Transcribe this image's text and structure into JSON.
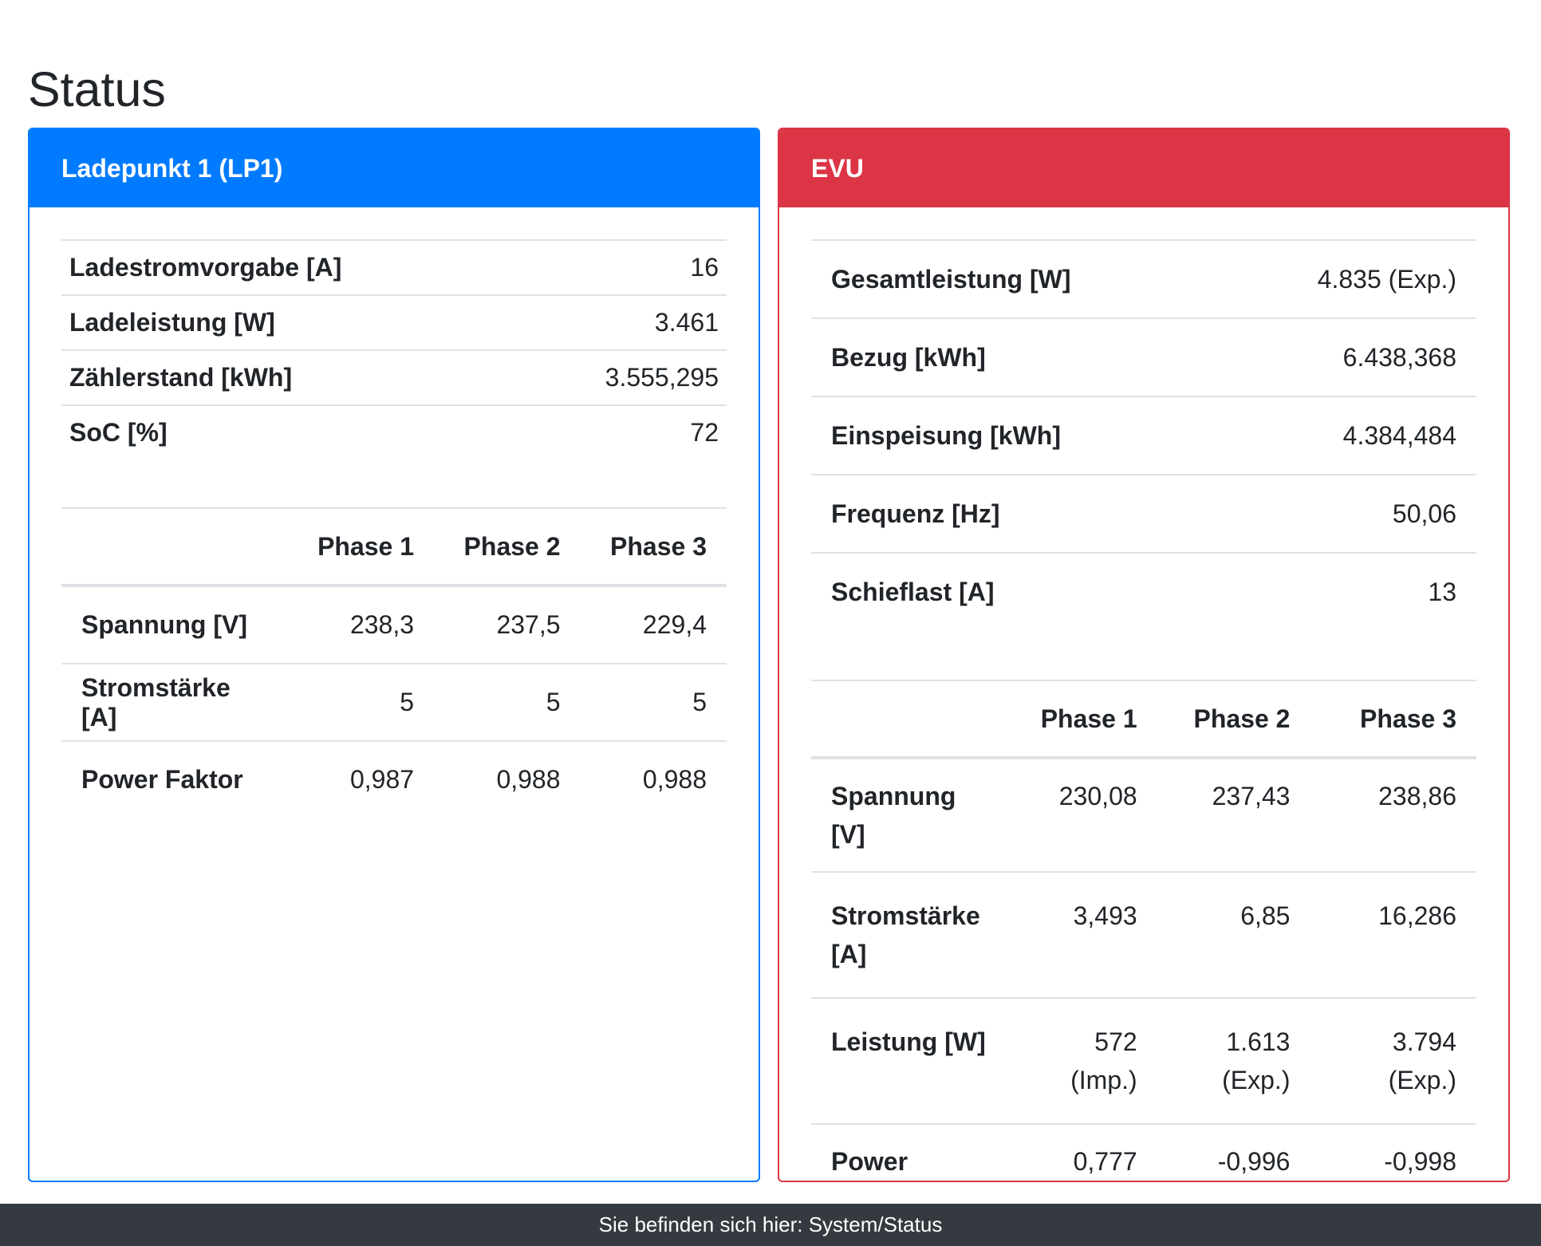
{
  "page": {
    "title": "Status"
  },
  "lp1": {
    "title": "Ladepunkt 1 (LP1)",
    "summary": [
      {
        "label": "Ladestromvorgabe [A]",
        "value": "16"
      },
      {
        "label": "Ladeleistung [W]",
        "value": "3.461"
      },
      {
        "label": "Zählerstand [kWh]",
        "value": "3.555,295"
      },
      {
        "label": "SoC [%]",
        "value": "72"
      }
    ],
    "phases": {
      "headers": [
        "",
        "Phase 1",
        "Phase 2",
        "Phase 3"
      ],
      "rows": [
        {
          "label": "Spannung [V]",
          "values": [
            "238,3",
            "237,5",
            "229,4"
          ]
        },
        {
          "label": "Stromstärke [A]",
          "values": [
            "5",
            "5",
            "5"
          ]
        },
        {
          "label": "Power Faktor",
          "values": [
            "0,987",
            "0,988",
            "0,988"
          ]
        }
      ]
    }
  },
  "evu": {
    "title": "EVU",
    "summary": [
      {
        "label": "Gesamtleistung [W]",
        "value": "4.835 (Exp.)"
      },
      {
        "label": "Bezug [kWh]",
        "value": "6.438,368"
      },
      {
        "label": "Einspeisung [kWh]",
        "value": "4.384,484"
      },
      {
        "label": "Frequenz [Hz]",
        "value": "50,06"
      },
      {
        "label": "Schieflast [A]",
        "value": "13"
      }
    ],
    "phases": {
      "headers": [
        "",
        "Phase 1",
        "Phase 2",
        "Phase 3"
      ],
      "rows": [
        {
          "label": "Spannung [V]",
          "values": [
            "230,08",
            "237,43",
            "238,86"
          ]
        },
        {
          "label": "Stromstärke [A]",
          "values": [
            "3,493",
            "6,85",
            "16,286"
          ]
        },
        {
          "label": "Leistung [W]",
          "values": [
            "572 (Imp.)",
            "1.613 (Exp.)",
            "3.794 (Exp.)"
          ]
        },
        {
          "label": "Power Faktor",
          "values": [
            "0,777",
            "-0,996",
            "-0,998"
          ]
        }
      ]
    }
  },
  "footer": {
    "text": "Sie befinden sich hier: System/Status"
  }
}
